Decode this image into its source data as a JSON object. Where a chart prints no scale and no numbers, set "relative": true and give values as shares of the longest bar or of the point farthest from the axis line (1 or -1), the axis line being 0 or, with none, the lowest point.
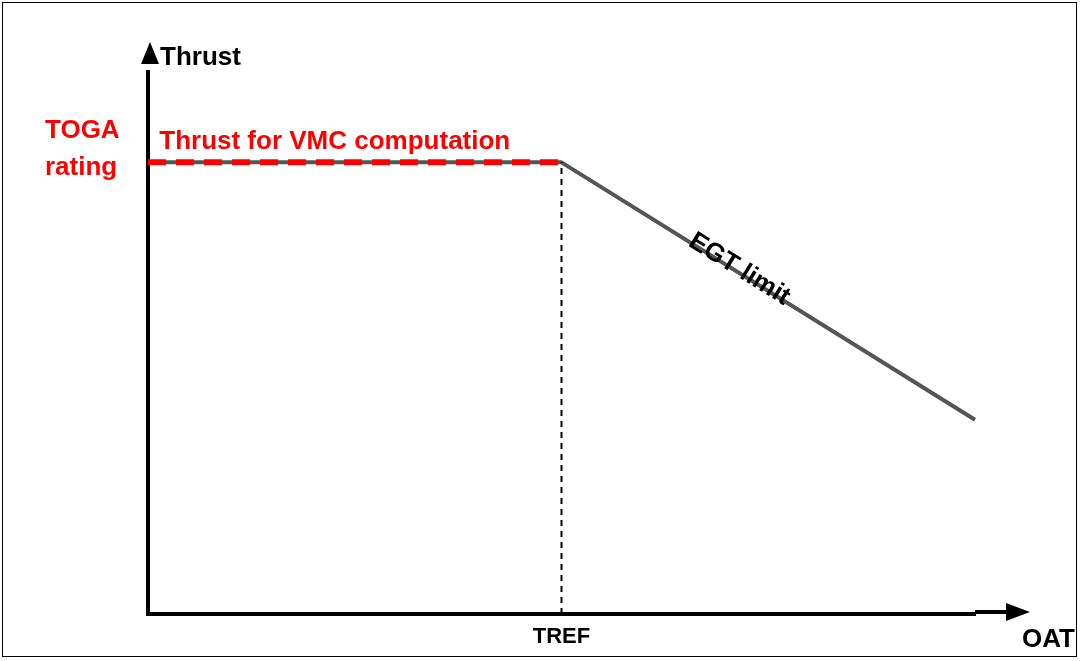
{
  "chart_data": {
    "type": "line",
    "relative": true,
    "ylabel": "Thrust",
    "xlabel": "OAT",
    "marker": "none",
    "grid": false,
    "legend": false,
    "categories": [
      null,
      null,
      null
    ],
    "series": [
      {
        "name": "EGT limit",
        "color": "#555555",
        "line_style": "solid",
        "values": [
          1,
          1,
          0.43
        ]
      },
      {
        "name": "Thrust for VMC computation",
        "color": "#ff0000",
        "line_style": "dashed",
        "values": [
          1,
          1,
          null
        ]
      }
    ],
    "annotations": [
      "TOGA rating",
      "TREF"
    ]
  }
}
